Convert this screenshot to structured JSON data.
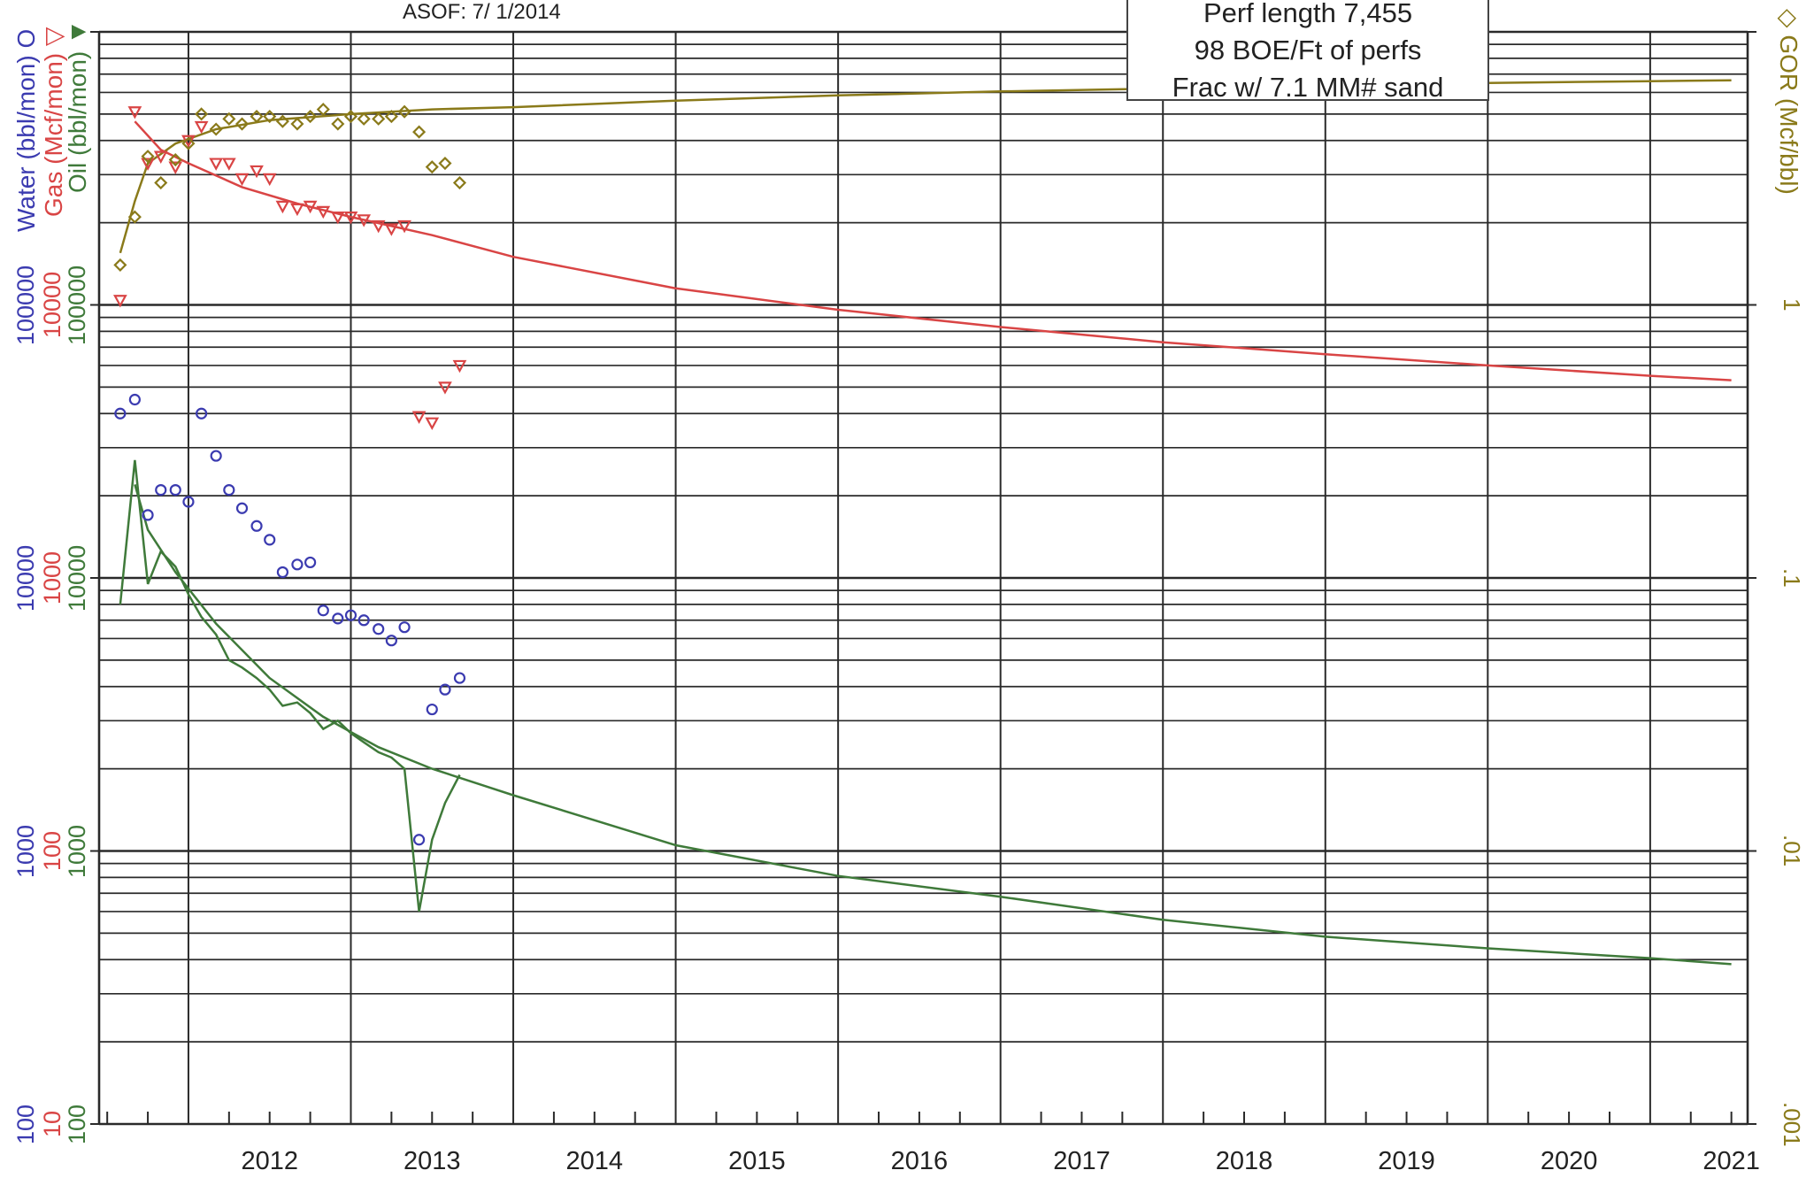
{
  "header": {
    "asof_text": "ASOF: 7/ 1/2014"
  },
  "info_box": {
    "line1": "Perf length 7,455",
    "line2": "98 BOE/Ft of perfs",
    "line3": "Frac w/ 7.1 MM# sand"
  },
  "axes": {
    "left_labels": {
      "water": "Water (bbl/mon)",
      "gas": "Gas (Mcf/mon)",
      "oil": "Oil (bbl/mon)"
    },
    "left_symbols": {
      "water": "O",
      "gas": "▽",
      "oil": "▼"
    },
    "right_label": "GOR (Mcf/bbl)",
    "right_symbol": "◇",
    "left_ticks": [
      {
        "water": "100",
        "gas": "10",
        "oil": "100"
      },
      {
        "water": "1000",
        "gas": "100",
        "oil": "1000"
      },
      {
        "water": "10000",
        "gas": "1000",
        "oil": "10000"
      },
      {
        "water": "100000",
        "gas": "10000",
        "oil": "100000"
      }
    ],
    "right_ticks": [
      ".001",
      ".01",
      ".1",
      "1"
    ],
    "x_ticks": [
      "2012",
      "2013",
      "2014",
      "2015",
      "2016",
      "2017",
      "2018",
      "2019",
      "2020",
      "2021"
    ]
  },
  "colors": {
    "water": "#3b3bb0",
    "gas": "#d94545",
    "oil": "#3f7a3a",
    "gor": "#8a7a1a",
    "grid": "#2a2a2a"
  },
  "chart_data": {
    "type": "scatter",
    "x_range": [
      2011.45,
      2021.6
    ],
    "oil_axis_range": [
      100,
      1000000
    ],
    "gas_axis_range": [
      10,
      100000
    ],
    "water_axis_range": [
      100,
      1000000
    ],
    "gor_axis_range": [
      0.001,
      10
    ],
    "log_scale": true,
    "grid": true,
    "series": {
      "water_points": [
        [
          2011.58,
          40000
        ],
        [
          2011.67,
          45000
        ],
        [
          2011.75,
          17000
        ],
        [
          2011.83,
          21000
        ],
        [
          2011.92,
          21000
        ],
        [
          2012.0,
          19000
        ],
        [
          2012.08,
          40000
        ],
        [
          2012.17,
          28000
        ],
        [
          2012.25,
          21000
        ],
        [
          2012.33,
          18000
        ],
        [
          2012.42,
          15500
        ],
        [
          2012.5,
          13800
        ],
        [
          2012.58,
          10500
        ],
        [
          2012.67,
          11200
        ],
        [
          2012.75,
          11400
        ],
        [
          2012.83,
          7600
        ],
        [
          2012.92,
          7100
        ],
        [
          2013.0,
          7300
        ],
        [
          2013.08,
          7000
        ],
        [
          2013.17,
          6500
        ],
        [
          2013.25,
          5900
        ],
        [
          2013.33,
          6600
        ],
        [
          2013.42,
          1100
        ],
        [
          2013.5,
          3300
        ],
        [
          2013.58,
          3900
        ],
        [
          2013.67,
          4300
        ]
      ],
      "gas_points": [
        [
          2011.58,
          10400
        ],
        [
          2011.67,
          51000
        ],
        [
          2011.75,
          33000
        ],
        [
          2011.83,
          35000
        ],
        [
          2011.92,
          32000
        ],
        [
          2012.0,
          40000
        ],
        [
          2012.08,
          45000
        ],
        [
          2012.17,
          33000
        ],
        [
          2012.25,
          33000
        ],
        [
          2012.33,
          29000
        ],
        [
          2012.42,
          31000
        ],
        [
          2012.5,
          29000
        ],
        [
          2012.58,
          23000
        ],
        [
          2012.67,
          22500
        ],
        [
          2012.75,
          23000
        ],
        [
          2012.83,
          22000
        ],
        [
          2012.92,
          21000
        ],
        [
          2013.0,
          21000
        ],
        [
          2013.08,
          20500
        ],
        [
          2013.17,
          19500
        ],
        [
          2013.25,
          19000
        ],
        [
          2013.33,
          19500
        ],
        [
          2013.42,
          3900
        ],
        [
          2013.5,
          3700
        ],
        [
          2013.58,
          5000
        ],
        [
          2013.67,
          6000
        ]
      ],
      "gor_points": [
        [
          2011.58,
          1.4
        ],
        [
          2011.67,
          2.1
        ],
        [
          2011.75,
          3.5
        ],
        [
          2011.83,
          2.8
        ],
        [
          2011.92,
          3.4
        ],
        [
          2012.0,
          3.9
        ],
        [
          2012.08,
          5.0
        ],
        [
          2012.17,
          4.4
        ],
        [
          2012.25,
          4.8
        ],
        [
          2012.33,
          4.6
        ],
        [
          2012.42,
          4.9
        ],
        [
          2012.5,
          4.9
        ],
        [
          2012.58,
          4.7
        ],
        [
          2012.67,
          4.6
        ],
        [
          2012.75,
          4.9
        ],
        [
          2012.83,
          5.2
        ],
        [
          2012.92,
          4.6
        ],
        [
          2013.0,
          4.9
        ],
        [
          2013.08,
          4.8
        ],
        [
          2013.17,
          4.8
        ],
        [
          2013.25,
          4.9
        ],
        [
          2013.33,
          5.1
        ],
        [
          2013.42,
          4.3
        ],
        [
          2013.5,
          3.2
        ],
        [
          2013.58,
          3.3
        ],
        [
          2013.67,
          2.8
        ]
      ],
      "oil_history": [
        [
          2011.58,
          8000
        ],
        [
          2011.67,
          27000
        ],
        [
          2011.75,
          9500
        ],
        [
          2011.83,
          12500
        ],
        [
          2011.92,
          11000
        ],
        [
          2012.0,
          8700
        ],
        [
          2012.08,
          7200
        ],
        [
          2012.17,
          6200
        ],
        [
          2012.25,
          5000
        ],
        [
          2012.33,
          4700
        ],
        [
          2012.42,
          4300
        ],
        [
          2012.5,
          3900
        ],
        [
          2012.58,
          3400
        ],
        [
          2012.67,
          3500
        ],
        [
          2012.75,
          3200
        ],
        [
          2012.83,
          2800
        ],
        [
          2012.92,
          3000
        ],
        [
          2013.0,
          2700
        ],
        [
          2013.08,
          2500
        ],
        [
          2013.17,
          2300
        ],
        [
          2013.25,
          2200
        ],
        [
          2013.33,
          2000
        ],
        [
          2013.42,
          600
        ],
        [
          2013.5,
          1100
        ],
        [
          2013.58,
          1500
        ],
        [
          2013.67,
          1900
        ]
      ],
      "oil_forecast": [
        [
          2011.67,
          22000
        ],
        [
          2011.75,
          15000
        ],
        [
          2011.92,
          10500
        ],
        [
          2012.17,
          6800
        ],
        [
          2012.5,
          4300
        ],
        [
          2012.83,
          3100
        ],
        [
          2013.17,
          2400
        ],
        [
          2013.5,
          2000
        ],
        [
          2014.0,
          1600
        ],
        [
          2015.0,
          1050
        ],
        [
          2016.0,
          810
        ],
        [
          2017.0,
          680
        ],
        [
          2018.0,
          560
        ],
        [
          2019.0,
          485
        ],
        [
          2020.0,
          440
        ],
        [
          2021.0,
          405
        ],
        [
          2021.5,
          385
        ]
      ],
      "gas_forecast": [
        [
          2011.67,
          47000
        ],
        [
          2011.83,
          37000
        ],
        [
          2012.0,
          33000
        ],
        [
          2012.33,
          27000
        ],
        [
          2012.67,
          23500
        ],
        [
          2013.0,
          21000
        ],
        [
          2013.5,
          18000
        ],
        [
          2014.0,
          15000
        ],
        [
          2015.0,
          11500
        ],
        [
          2016.0,
          9600
        ],
        [
          2017.0,
          8300
        ],
        [
          2018.0,
          7300
        ],
        [
          2019.0,
          6600
        ],
        [
          2020.0,
          6000
        ],
        [
          2021.0,
          5500
        ],
        [
          2021.5,
          5300
        ]
      ],
      "gor_forecast": [
        [
          2011.58,
          1.55
        ],
        [
          2011.67,
          2.4
        ],
        [
          2011.75,
          3.3
        ],
        [
          2011.92,
          3.9
        ],
        [
          2012.17,
          4.4
        ],
        [
          2012.5,
          4.75
        ],
        [
          2013.0,
          5.0
        ],
        [
          2013.5,
          5.2
        ],
        [
          2014.0,
          5.3
        ],
        [
          2015.0,
          5.6
        ],
        [
          2016.0,
          5.85
        ],
        [
          2017.0,
          6.05
        ],
        [
          2018.0,
          6.2
        ],
        [
          2019.0,
          6.35
        ],
        [
          2020.0,
          6.5
        ],
        [
          2021.0,
          6.6
        ],
        [
          2021.5,
          6.65
        ]
      ]
    }
  }
}
